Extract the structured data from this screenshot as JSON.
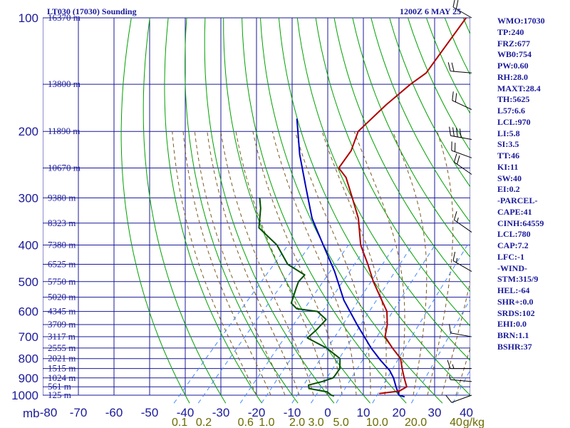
{
  "header": {
    "station": "LT030 (17030) Sounding",
    "time": "1200Z  6 MAY 25"
  },
  "indices": [
    "WMO:17030",
    "TP:240",
    "FRZ:677",
    "WB0:754",
    "PW:0.60",
    "RH:28.0",
    "MAXT:28.4",
    "TH:5625",
    "L57:6.6",
    "LCL:970",
    "LI:5.8",
    "SI:3.5",
    "TT:46",
    "KI:11",
    "SW:40",
    "EI:0.2",
    "-PARCEL-",
    "CAPE:41",
    "CINH:64559",
    "LCL:780",
    "CAP:7.2",
    "LFC:-1",
    "-WIND-",
    "STM:315/9",
    "HEL:-64",
    "SHR+:0.0",
    "SRDS:102",
    "EHI:0.0",
    "BRN:1.1",
    "BSHR:37"
  ],
  "colors": {
    "grid": "#1a1a9a",
    "dry_adiabat": "#00a000",
    "moist_adiabat": "#7a5a20",
    "mixing_ratio": "#4488ff",
    "temperature": "#b00000",
    "dewpoint": "#005000",
    "parcel": "#0000c0",
    "background": "#ffffff"
  },
  "chart_data": {
    "type": "line",
    "title": "LT030 (17030) Sounding",
    "pressure_unit_label": "mb",
    "mixing_ratio_unit_label": "g/kg",
    "pressure_levels": [
      100,
      200,
      300,
      400,
      500,
      600,
      700,
      800,
      900,
      1000
    ],
    "pressure_labels": [
      "100",
      "200",
      "300",
      "400",
      "500",
      "600",
      "700",
      "800",
      "900",
      "1000"
    ],
    "temperature_ticks": [
      -80,
      -70,
      -60,
      -50,
      -40,
      -30,
      -20,
      -10,
      0,
      10,
      20,
      30,
      40
    ],
    "temperature_labels": [
      "-80",
      "-70",
      "-60",
      "-50",
      "-40",
      "-30",
      "-20",
      "-10",
      "0",
      "10",
      "20",
      "30",
      "40"
    ],
    "mixing_ratio_labels": [
      "0.1",
      "0.2",
      "0.6",
      "1.0",
      "2.0",
      "3.0",
      "5.0",
      "10.0",
      "20.0",
      "40"
    ],
    "altitude_labels": [
      {
        "p": 100,
        "label": "16370 m"
      },
      {
        "p": 150,
        "label": "13800 m"
      },
      {
        "p": 200,
        "label": "11890 m"
      },
      {
        "p": 250,
        "label": "10670 m"
      },
      {
        "p": 300,
        "label": "9380 m"
      },
      {
        "p": 350,
        "label": "8323 m"
      },
      {
        "p": 400,
        "label": "7380 m"
      },
      {
        "p": 450,
        "label": "6525 m"
      },
      {
        "p": 500,
        "label": "5750 m"
      },
      {
        "p": 550,
        "label": "5020 m"
      },
      {
        "p": 600,
        "label": "4345 m"
      },
      {
        "p": 650,
        "label": "3709 m"
      },
      {
        "p": 700,
        "label": "3117 m"
      },
      {
        "p": 750,
        "label": "2555 m"
      },
      {
        "p": 800,
        "label": "2021 m"
      },
      {
        "p": 850,
        "label": "1515 m"
      },
      {
        "p": 900,
        "label": "1024 m"
      },
      {
        "p": 950,
        "label": "561 m"
      },
      {
        "p": 1000,
        "label": "125 m"
      }
    ],
    "series": [
      {
        "role": "temperature",
        "points": [
          [
            100,
            -58.5
          ],
          [
            140,
            -55.5
          ],
          [
            150,
            -57
          ],
          [
            170,
            -58.5
          ],
          [
            200,
            -59.5
          ],
          [
            225,
            -56.5
          ],
          [
            250,
            -55.5
          ],
          [
            265,
            -51
          ],
          [
            300,
            -44
          ],
          [
            340,
            -37
          ],
          [
            400,
            -29.5
          ],
          [
            450,
            -22.5
          ],
          [
            500,
            -16.5
          ],
          [
            550,
            -10.5
          ],
          [
            600,
            -5
          ],
          [
            650,
            -1.5
          ],
          [
            700,
            1
          ],
          [
            750,
            6
          ],
          [
            800,
            11
          ],
          [
            850,
            14
          ],
          [
            900,
            17
          ],
          [
            950,
            20
          ],
          [
            975,
            19
          ],
          [
            990,
            14
          ]
        ]
      },
      {
        "role": "dewpoint",
        "points": [
          [
            300,
            -70
          ],
          [
            320,
            -67
          ],
          [
            360,
            -62.5
          ],
          [
            400,
            -53
          ],
          [
            450,
            -45
          ],
          [
            480,
            -37.5
          ],
          [
            500,
            -37.5
          ],
          [
            520,
            -36.5
          ],
          [
            570,
            -34
          ],
          [
            590,
            -31
          ],
          [
            600,
            -24.5
          ],
          [
            630,
            -20
          ],
          [
            670,
            -20
          ],
          [
            705,
            -20.5
          ],
          [
            750,
            -12.5
          ],
          [
            800,
            -6
          ],
          [
            850,
            -3.5
          ],
          [
            890,
            -3
          ],
          [
            900,
            -3
          ],
          [
            920,
            -5
          ],
          [
            940,
            -8
          ],
          [
            960,
            -7
          ],
          [
            980,
            -1
          ],
          [
            1000,
            1
          ],
          [
            1005,
            2
          ]
        ]
      },
      {
        "role": "parcel",
        "points": [
          [
            185,
            -80
          ],
          [
            230,
            -70
          ],
          [
            280,
            -60
          ],
          [
            340,
            -50
          ],
          [
            400,
            -40
          ],
          [
            470,
            -30
          ],
          [
            560,
            -20
          ],
          [
            650,
            -10
          ],
          [
            750,
            0
          ],
          [
            810,
            6
          ],
          [
            860,
            11
          ],
          [
            900,
            14
          ],
          [
            950,
            17
          ],
          [
            1000,
            20
          ],
          [
            1010,
            22
          ]
        ]
      }
    ],
    "wind_barbs": [
      {
        "p": 100,
        "dir": 300,
        "kt": 20
      },
      {
        "p": 140,
        "dir": 275,
        "kt": 20
      },
      {
        "p": 175,
        "dir": 295,
        "kt": 20
      },
      {
        "p": 210,
        "dir": 280,
        "kt": 40
      },
      {
        "p": 235,
        "dir": 290,
        "kt": 20
      },
      {
        "p": 260,
        "dir": 305,
        "kt": 20
      },
      {
        "p": 370,
        "dir": 305,
        "kt": 15
      },
      {
        "p": 470,
        "dir": 300,
        "kt": 15
      },
      {
        "p": 700,
        "dir": 280,
        "kt": 10
      },
      {
        "p": 850,
        "dir": 270,
        "kt": 15
      },
      {
        "p": 920,
        "dir": 275,
        "kt": 5
      },
      {
        "p": 1000,
        "dir": 250,
        "kt": 10
      }
    ]
  }
}
